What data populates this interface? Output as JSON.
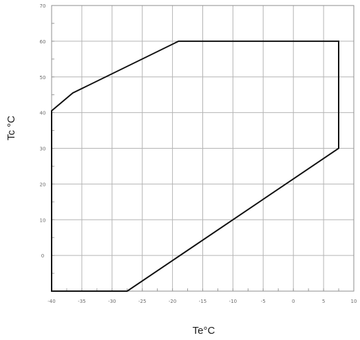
{
  "chart_data": {
    "type": "line",
    "title": "",
    "xlabel": "Te°C",
    "ylabel": "Tc °C",
    "xlim": [
      -40,
      10
    ],
    "ylim": [
      -10,
      70
    ],
    "x_ticks": [
      -40,
      -35,
      -30,
      -25,
      -20,
      -15,
      -10,
      -5,
      0,
      5,
      10
    ],
    "x_tick_labels": [
      "-40",
      "-35",
      "-30",
      "-25",
      "-20",
      "-15",
      "-10",
      "-5",
      "0",
      "5",
      "10"
    ],
    "y_ticks": [
      -10,
      0,
      10,
      20,
      30,
      40,
      50,
      60,
      70
    ],
    "y_tick_labels": [
      "",
      "0",
      "10",
      "20",
      "30",
      "40",
      "50",
      "60",
      "70"
    ],
    "grid": true,
    "series": [
      {
        "color": "#111111",
        "closed": true,
        "x": [
          -40,
          -40,
          -36.5,
          -19,
          7.5,
          7.5,
          -27.5,
          -40
        ],
        "y": [
          -10,
          40.5,
          45.5,
          60,
          60,
          30,
          -10,
          -10
        ]
      }
    ]
  }
}
